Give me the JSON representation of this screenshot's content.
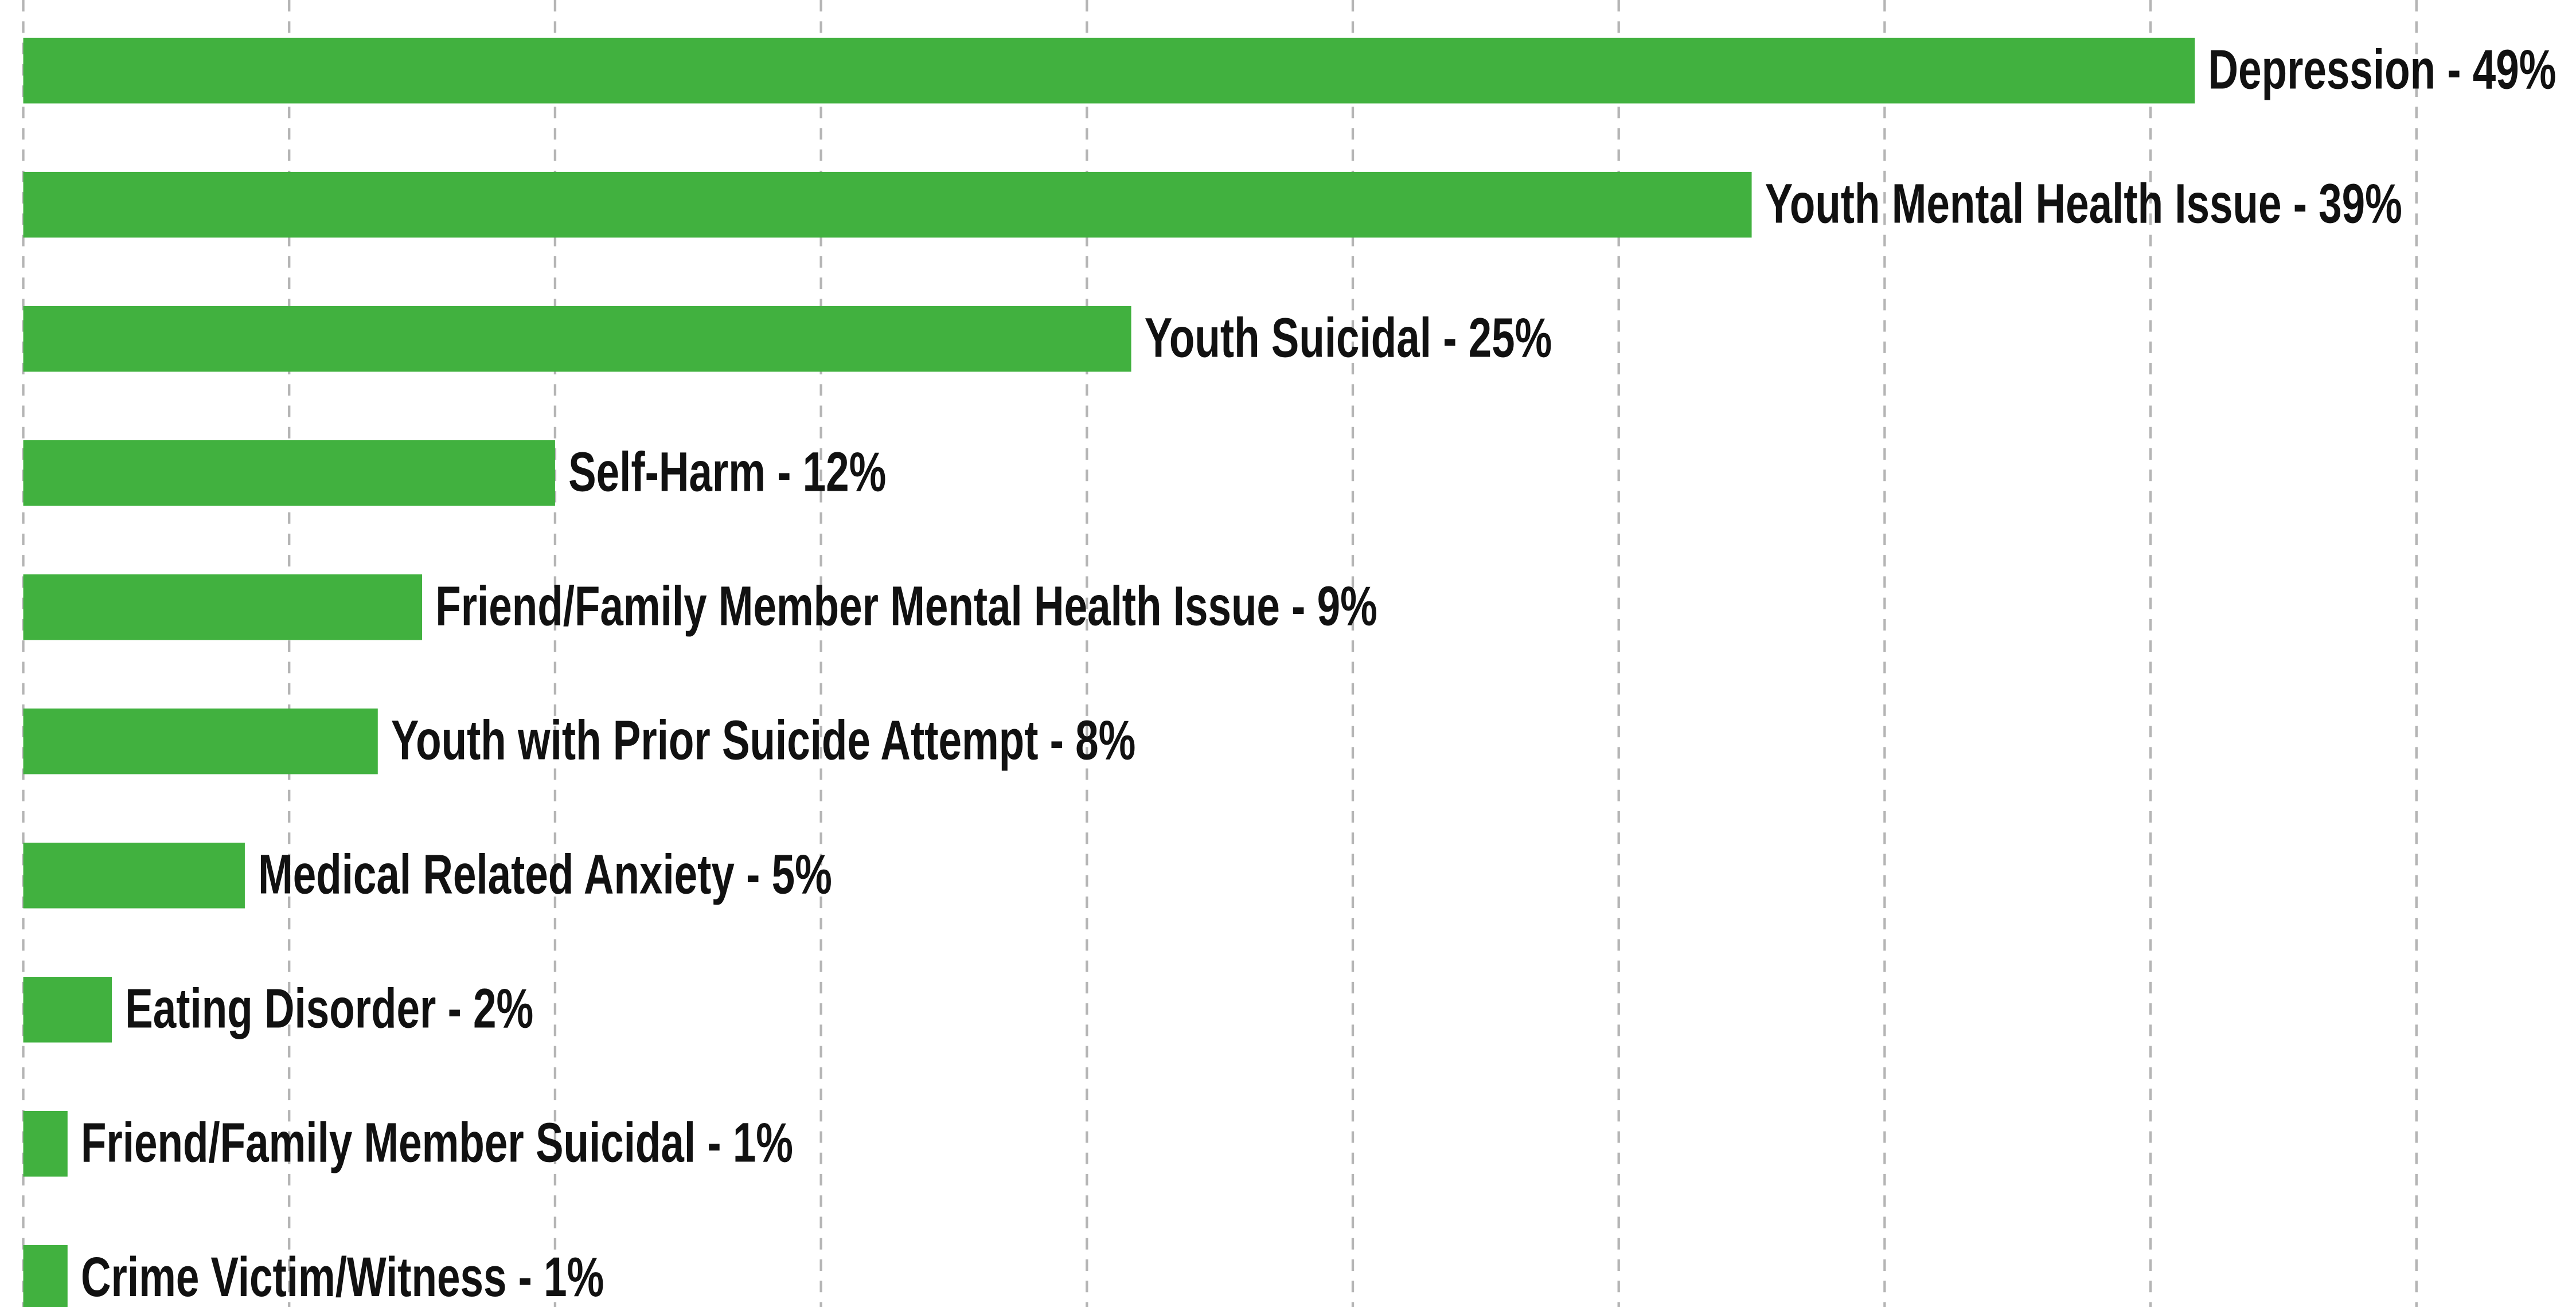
{
  "chart_data": {
    "type": "barh",
    "value_labels": [
      "Depression - 49%",
      "Youth Mental Health Issue - 39%",
      "Youth Suicidal - 25%",
      "Self-Harm - 12%",
      "Friend/Family Member Mental Health Issue - 9%",
      "Youth with Prior Suicide Attempt - 8%",
      "Medical Related Anxiety - 5%",
      "Eating Disorder - 2%",
      "Friend/Family Member Suicidal - 1%",
      "Crime Victim/Witness - 1%"
    ],
    "values": [
      49,
      39,
      25,
      12,
      9,
      8,
      5,
      2,
      1,
      1
    ],
    "color": "#41b13f",
    "xlim": [
      0,
      57.6
    ],
    "xticks": [
      0,
      6,
      12,
      18,
      24,
      30,
      36,
      42,
      48,
      54
    ],
    "grid": true
  }
}
